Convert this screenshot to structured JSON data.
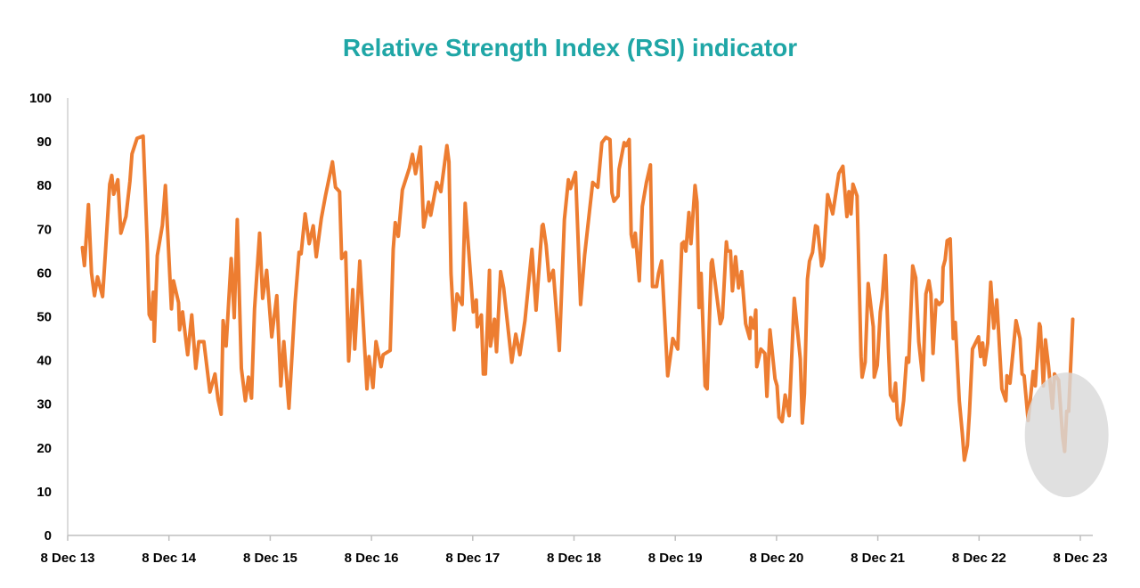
{
  "chart_data": {
    "type": "line",
    "title": "Relative Strength Index (RSI) indicator",
    "xlabel": "",
    "ylabel": "",
    "ylim": [
      0,
      100
    ],
    "yticks": [
      "0",
      "10",
      "20",
      "30",
      "40",
      "50",
      "60",
      "70",
      "80",
      "90",
      "100"
    ],
    "ytick_values": [
      0,
      10,
      20,
      30,
      40,
      50,
      60,
      70,
      80,
      90,
      100
    ],
    "xticks": [
      "8 Dec 13",
      "8 Dec 14",
      "8 Dec 15",
      "8 Dec 16",
      "8 Dec 17",
      "8 Dec 18",
      "8 Dec 19",
      "8 Dec 20",
      "8 Dec 21",
      "8 Dec 22",
      "8 Dec 23"
    ],
    "xtick_values": [
      2013.935,
      2014.935,
      2015.935,
      2016.935,
      2017.935,
      2018.935,
      2019.935,
      2020.935,
      2021.935,
      2022.935,
      2023.935
    ],
    "xlim": [
      2013.935,
      2024.06
    ],
    "grid": false,
    "highlight": {
      "type": "ellipse",
      "center": [
        2023.8,
        23
      ],
      "description_color": "#d9d9d9"
    },
    "series": [
      {
        "name": "RSI",
        "color": "#ed7d31",
        "x": [
          2014.08,
          2014.1,
          2014.14,
          2014.17,
          2014.2,
          2014.23,
          2014.28,
          2014.31,
          2014.35,
          2014.37,
          2014.39,
          2014.43,
          2014.46,
          2014.51,
          2014.55,
          2014.57,
          2014.62,
          2014.68,
          2014.72,
          2014.74,
          2014.76,
          2014.78,
          2014.79,
          2014.82,
          2014.87,
          2014.9,
          2014.96,
          2014.98,
          2015.03,
          2015.04,
          2015.07,
          2015.12,
          2015.16,
          2015.2,
          2015.23,
          2015.28,
          2015.34,
          2015.39,
          2015.42,
          2015.45,
          2015.47,
          2015.5,
          2015.55,
          2015.58,
          2015.61,
          2015.65,
          2015.69,
          2015.72,
          2015.75,
          2015.78,
          2015.83,
          2015.86,
          2015.9,
          2015.95,
          2016.0,
          2016.04,
          2016.07,
          2016.12,
          2016.18,
          2016.22,
          2016.24,
          2016.28,
          2016.32,
          2016.36,
          2016.39,
          2016.44,
          2016.48,
          2016.55,
          2016.58,
          2016.62,
          2016.64,
          2016.68,
          2016.71,
          2016.75,
          2016.77,
          2016.82,
          2016.89,
          2016.91,
          2016.95,
          2016.98,
          2017.03,
          2017.05,
          2017.12,
          2017.15,
          2017.17,
          2017.2,
          2017.24,
          2017.31,
          2017.34,
          2017.37,
          2017.42,
          2017.45,
          2017.5,
          2017.52,
          2017.58,
          2017.62,
          2017.68,
          2017.7,
          2017.72,
          2017.75,
          2017.78,
          2017.83,
          2017.86,
          2017.94,
          2017.97,
          2017.98,
          2018.02,
          2018.04,
          2018.06,
          2018.1,
          2018.11,
          2018.15,
          2018.17,
          2018.21,
          2018.24,
          2018.32,
          2018.36,
          2018.4,
          2018.45,
          2018.52,
          2018.56,
          2018.62,
          2018.63,
          2018.66,
          2018.69,
          2018.73,
          2018.79,
          2018.84,
          2018.88,
          2018.9,
          2018.95,
          2019.0,
          2019.04,
          2019.09,
          2019.12,
          2019.17,
          2019.21,
          2019.25,
          2019.29,
          2019.31,
          2019.33,
          2019.37,
          2019.38,
          2019.43,
          2019.45,
          2019.48,
          2019.5,
          2019.52,
          2019.54,
          2019.58,
          2019.61,
          2019.65,
          2019.69,
          2019.71,
          2019.75,
          2019.77,
          2019.8,
          2019.86,
          2019.91,
          2019.96,
          2020.0,
          2020.02,
          2020.04,
          2020.07,
          2020.09,
          2020.13,
          2020.15,
          2020.17,
          2020.19,
          2020.23,
          2020.25,
          2020.29,
          2020.3,
          2020.38,
          2020.4,
          2020.44,
          2020.45,
          2020.48,
          2020.5,
          2020.53,
          2020.56,
          2020.59,
          2020.63,
          2020.67,
          2020.68,
          2020.71,
          2020.73,
          2020.74,
          2020.78,
          2020.82,
          2020.84,
          2020.87,
          2020.92,
          2020.94,
          2020.96,
          2020.99,
          2021.02,
          2021.06,
          2021.11,
          2021.15,
          2021.17,
          2021.19,
          2021.21,
          2021.24,
          2021.26,
          2021.29,
          2021.32,
          2021.34,
          2021.38,
          2021.4,
          2021.44,
          2021.49,
          2021.55,
          2021.59,
          2021.63,
          2021.65,
          2021.67,
          2021.69,
          2021.73,
          2021.77,
          2021.78,
          2021.81,
          2021.84,
          2021.89,
          2021.9,
          2021.93,
          2021.96,
          2021.98,
          2022.01,
          2022.04,
          2022.06,
          2022.09,
          2022.11,
          2022.13,
          2022.16,
          2022.19,
          2022.22,
          2022.24,
          2022.28,
          2022.31,
          2022.34,
          2022.38,
          2022.41,
          2022.44,
          2022.46,
          2022.48,
          2022.51,
          2022.54,
          2022.57,
          2022.58,
          2022.6,
          2022.62,
          2022.65,
          2022.68,
          2022.7,
          2022.74,
          2022.77,
          2022.79,
          2022.82,
          2022.84,
          2022.87,
          2022.93,
          2022.95,
          2022.97,
          2022.99,
          2023.02,
          2023.05,
          2023.08,
          2023.11,
          2023.16,
          2023.2,
          2023.21,
          2023.24,
          2023.3,
          2023.34,
          2023.36,
          2023.38,
          2023.42,
          2023.47,
          2023.49,
          2023.53,
          2023.54,
          2023.57,
          2023.59,
          2023.62,
          2023.66,
          2023.68,
          2023.72,
          2023.76,
          2023.78,
          2023.8,
          2023.82,
          2023.86
        ],
        "values": [
          65.8,
          61.7,
          75.6,
          60,
          54.8,
          59.1,
          54.6,
          65.4,
          80.3,
          82.3,
          78,
          81.3,
          69.1,
          72.9,
          81,
          87.2,
          90.8,
          91.3,
          66.8,
          50.5,
          49.5,
          55.6,
          44.4,
          64,
          70.9,
          80,
          51.8,
          58.2,
          53.2,
          47,
          51.1,
          41.3,
          50.4,
          38.2,
          44.3,
          44.3,
          32.8,
          36.9,
          31.1,
          27.7,
          49.1,
          43.3,
          63.3,
          49.8,
          72.2,
          38.2,
          30.8,
          36.2,
          31.4,
          51.8,
          69.1,
          54.2,
          60.6,
          45.4,
          54.8,
          34.2,
          44.3,
          29.1,
          53.2,
          64.7,
          64.4,
          73.5,
          66.7,
          70.8,
          63.7,
          72.5,
          77.6,
          85.4,
          79.6,
          78.6,
          63.3,
          64.7,
          39.9,
          56.2,
          42.6,
          62.7,
          33.5,
          40.9,
          33.8,
          44.3,
          38.6,
          41.3,
          42.3,
          65.4,
          71.5,
          68.4,
          79,
          84,
          87.1,
          82.7,
          88.8,
          70.5,
          76.2,
          73.2,
          80.7,
          78.6,
          89.1,
          85.4,
          59.9,
          47,
          55.2,
          52.8,
          75.9,
          51.1,
          53.8,
          47.7,
          50.4,
          36.9,
          36.9,
          60.6,
          43.3,
          49.4,
          42,
          60.3,
          56.6,
          39.6,
          46,
          41.3,
          49.1,
          65.4,
          51.5,
          70.8,
          71.1,
          66.4,
          58.2,
          60.6,
          42.3,
          72.2,
          81.3,
          79.3,
          83,
          52.8,
          64,
          74.5,
          80.7,
          79.6,
          89.8,
          91,
          90.5,
          78.3,
          76.4,
          77.6,
          83.7,
          89.8,
          89.1,
          90.5,
          68.8,
          66,
          69.1,
          58.2,
          75.2,
          80.7,
          84.7,
          56.9,
          56.9,
          59.9,
          62.7,
          36.5,
          45,
          42.6,
          66.7,
          67.1,
          65,
          73.8,
          66.7,
          80,
          76.2,
          52.1,
          59.9,
          34.2,
          33.5,
          62.3,
          63,
          48.4,
          49.8,
          67.1,
          65,
          65,
          55.9,
          63.7,
          56.6,
          60.3,
          48.4,
          45,
          49.8,
          47.4,
          51.5,
          38.6,
          42.6,
          41.6,
          31.8,
          47,
          35.8,
          34.2,
          27,
          26,
          32.1,
          27.4,
          54.2,
          45,
          40.3,
          25.7,
          32.4,
          58.6,
          62.7,
          64.7,
          70.8,
          70.5,
          61.6,
          63.3,
          77.9,
          73.5,
          82.7,
          84.4,
          72.9,
          78.6,
          73.5,
          80.3,
          77.6,
          40.9,
          36.2,
          39.6,
          57.6,
          47.7,
          36.2,
          38.9,
          51.1,
          54.5,
          64,
          43,
          32.1,
          30.8,
          34.8,
          26.7,
          25.3,
          30.8,
          40.6,
          39.6,
          61.6,
          58.9,
          44.3,
          35.5,
          55.2,
          58.2,
          55.2,
          41.6,
          53.8,
          52.8,
          53.5,
          61.3,
          63,
          67.4,
          67.8,
          45,
          48.7,
          30.8,
          23.3,
          17.2,
          20.6,
          28,
          42.6,
          45.4,
          40.9,
          44,
          39,
          44,
          57.9,
          47.4,
          53.8,
          33.5,
          30.8,
          36.5,
          34.8,
          49.1,
          45,
          36.9,
          36.5,
          26.3,
          37.5,
          34.2,
          48.4,
          47.7,
          34.2,
          44.7,
          38.9,
          29.1,
          36.9,
          35.5,
          22.6,
          19.2,
          28.4,
          28.4,
          49.4
        ]
      }
    ]
  }
}
